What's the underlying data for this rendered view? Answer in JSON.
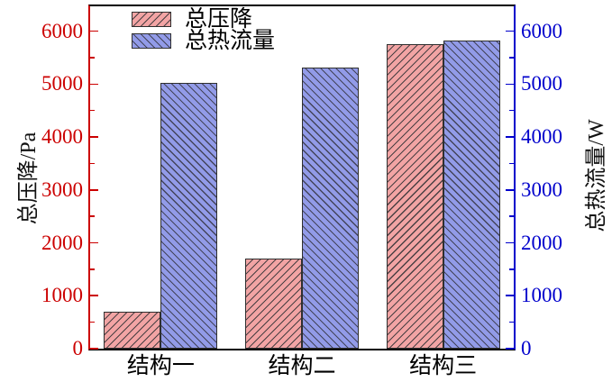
{
  "chart_data": {
    "type": "bar",
    "categories": [
      "结构一",
      "结构二",
      "结构三"
    ],
    "series": [
      {
        "name": "总压降",
        "axis": "left",
        "values": [
          700,
          1700,
          5760
        ],
        "fill": "#f2a4a4",
        "hatch": "/",
        "hatch_color": "#4a4043",
        "edge_color": "#2f2f2f"
      },
      {
        "name": "总热流量",
        "axis": "right",
        "values": [
          5020,
          5310,
          5820
        ],
        "fill": "#929be8",
        "hatch": "\\",
        "hatch_color": "#43445a",
        "edge_color": "#2f2f2f"
      }
    ],
    "left_axis": {
      "label": "总压降/Pa",
      "color": "#cc0000",
      "min": 0,
      "max": 6470,
      "major_ticks": [
        0,
        1000,
        2000,
        3000,
        4000,
        5000,
        6000
      ],
      "tick_labels": [
        "0",
        "1000",
        "2000",
        "3000",
        "4000",
        "5000",
        "6000"
      ],
      "minor_ticks": [
        500,
        1500,
        2500,
        3500,
        4500,
        5500
      ]
    },
    "right_axis": {
      "label": "总热流量/W",
      "color": "#0000cc",
      "min": 0,
      "max": 6470,
      "major_ticks": [
        0,
        1000,
        2000,
        3000,
        4000,
        5000,
        6000
      ],
      "tick_labels": [
        "0",
        "1000",
        "2000",
        "3000",
        "4000",
        "5000",
        "6000"
      ],
      "minor_ticks": [
        500,
        1500,
        2500,
        3500,
        4500,
        5500
      ]
    },
    "spines": {
      "top_color": "#000000",
      "bottom_color": "#000000"
    },
    "legend": {
      "position": "top-center",
      "frame": false,
      "entries": [
        "总压降",
        "总热流量"
      ]
    },
    "grid": false,
    "title": ""
  }
}
